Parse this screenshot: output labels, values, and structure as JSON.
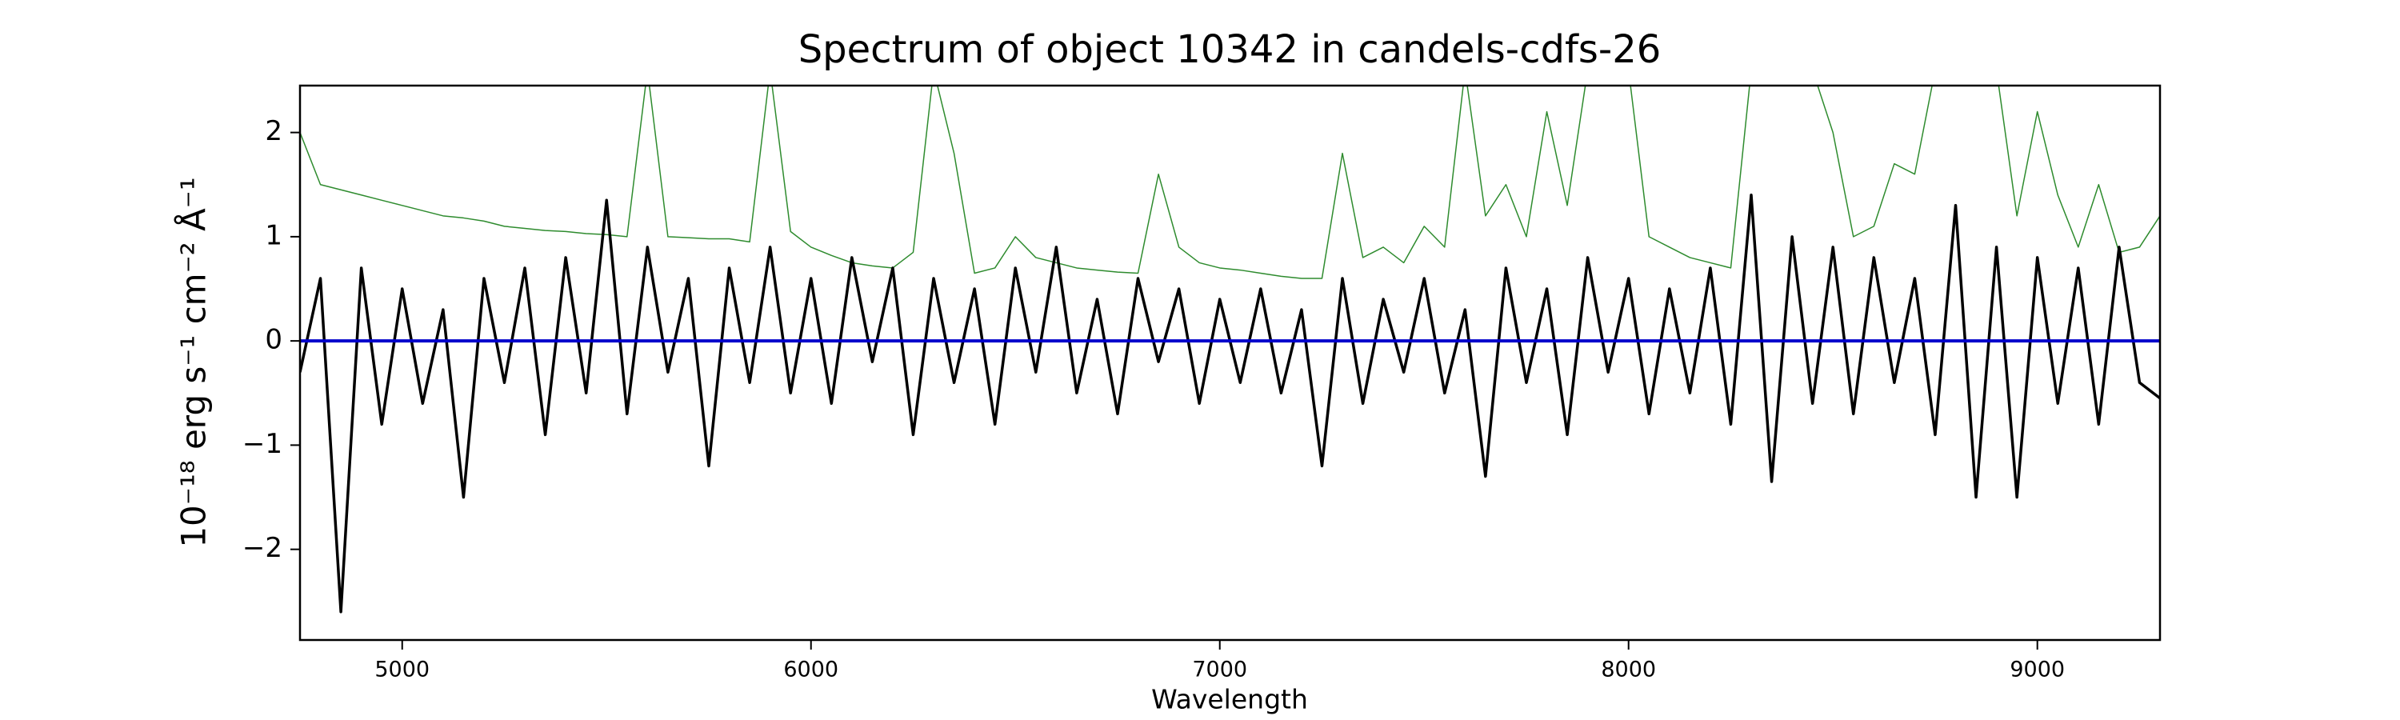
{
  "chart_data": {
    "type": "line",
    "title": "Spectrum of object 10342 in candels-cdfs-26",
    "xlabel": "Wavelength",
    "ylabel": "10⁻¹⁸ erg s⁻¹ cm⁻² Å⁻¹",
    "xlim": [
      4750,
      9300
    ],
    "ylim": [
      -2.87,
      2.45
    ],
    "xticks": [
      5000,
      6000,
      7000,
      8000,
      9000
    ],
    "yticks": [
      {
        "value": -2,
        "label": "−2"
      },
      {
        "value": -1,
        "label": "−1"
      },
      0,
      1,
      2
    ],
    "x": [
      4750,
      4800,
      4850,
      4900,
      4950,
      5000,
      5050,
      5100,
      5150,
      5200,
      5250,
      5300,
      5350,
      5400,
      5450,
      5500,
      5550,
      5600,
      5650,
      5700,
      5750,
      5800,
      5850,
      5900,
      5950,
      6000,
      6050,
      6100,
      6150,
      6200,
      6250,
      6300,
      6350,
      6400,
      6450,
      6500,
      6550,
      6600,
      6650,
      6700,
      6750,
      6800,
      6850,
      6900,
      6950,
      7000,
      7050,
      7100,
      7150,
      7200,
      7250,
      7300,
      7350,
      7400,
      7450,
      7500,
      7550,
      7600,
      7650,
      7700,
      7750,
      7800,
      7850,
      7900,
      7950,
      8000,
      8050,
      8100,
      8150,
      8200,
      8250,
      8300,
      8350,
      8400,
      8450,
      8500,
      8550,
      8600,
      8650,
      8700,
      8750,
      8800,
      8850,
      8900,
      8950,
      9000,
      9050,
      9100,
      9150,
      9200,
      9250,
      9300
    ],
    "series": [
      {
        "color": "#2e8b2e",
        "width": 1.5,
        "values": [
          2.0,
          1.5,
          1.45,
          1.4,
          1.35,
          1.3,
          1.25,
          1.2,
          1.18,
          1.15,
          1.1,
          1.08,
          1.06,
          1.05,
          1.03,
          1.02,
          1.0,
          2.6,
          1.0,
          0.99,
          0.98,
          0.98,
          0.95,
          2.6,
          1.05,
          0.9,
          0.82,
          0.75,
          0.72,
          0.7,
          0.85,
          2.6,
          1.8,
          0.65,
          0.7,
          1.0,
          0.8,
          0.75,
          0.7,
          0.68,
          0.66,
          0.65,
          1.6,
          0.9,
          0.75,
          0.7,
          0.68,
          0.65,
          0.62,
          0.6,
          0.6,
          1.8,
          0.8,
          0.9,
          0.75,
          1.1,
          0.9,
          2.6,
          1.2,
          1.5,
          1.0,
          2.2,
          1.3,
          2.6,
          2.6,
          2.6,
          1.0,
          0.9,
          0.8,
          0.75,
          0.7,
          2.6,
          2.6,
          2.6,
          2.6,
          2.0,
          1.0,
          1.1,
          1.7,
          1.6,
          2.6,
          2.6,
          2.6,
          2.6,
          1.2,
          2.2,
          1.4,
          0.9,
          1.5,
          0.85,
          0.9,
          1.2
        ]
      },
      {
        "color": "#000000",
        "width": 3.5,
        "values": [
          -0.3,
          0.6,
          -2.6,
          0.7,
          -0.8,
          0.5,
          -0.6,
          0.3,
          -1.5,
          0.6,
          -0.4,
          0.7,
          -0.9,
          0.8,
          -0.5,
          1.35,
          -0.7,
          0.9,
          -0.3,
          0.6,
          -1.2,
          0.7,
          -0.4,
          0.9,
          -0.5,
          0.6,
          -0.6,
          0.8,
          -0.2,
          0.7,
          -0.9,
          0.6,
          -0.4,
          0.5,
          -0.8,
          0.7,
          -0.3,
          0.9,
          -0.5,
          0.4,
          -0.7,
          0.6,
          -0.2,
          0.5,
          -0.6,
          0.4,
          -0.4,
          0.5,
          -0.5,
          0.3,
          -1.2,
          0.6,
          -0.6,
          0.4,
          -0.3,
          0.6,
          -0.5,
          0.3,
          -1.3,
          0.7,
          -0.4,
          0.5,
          -0.9,
          0.8,
          -0.3,
          0.6,
          -0.7,
          0.5,
          -0.5,
          0.7,
          -0.8,
          1.4,
          -1.35,
          1.0,
          -0.6,
          0.9,
          -0.7,
          0.8,
          -0.4,
          0.6,
          -0.9,
          1.3,
          -1.5,
          0.9,
          -1.5,
          0.8,
          -0.6,
          0.7,
          -0.8,
          0.9,
          -0.4,
          -0.55
        ]
      },
      {
        "color": "#0000cc",
        "width": 4,
        "values": [
          0,
          0,
          0,
          0,
          0,
          0,
          0,
          0,
          0,
          0,
          0,
          0,
          0,
          0,
          0,
          0,
          0,
          0,
          0,
          0,
          0,
          0,
          0,
          0,
          0,
          0,
          0,
          0,
          0,
          0,
          0,
          0,
          0,
          0,
          0,
          0,
          0,
          0,
          0,
          0,
          0,
          0,
          0,
          0,
          0,
          0,
          0,
          0,
          0,
          0,
          0,
          0,
          0,
          0,
          0,
          0,
          0,
          0,
          0,
          0,
          0,
          0,
          0,
          0,
          0,
          0,
          0,
          0,
          0,
          0,
          0,
          0,
          0,
          0,
          0,
          0,
          0,
          0,
          0,
          0,
          0,
          0,
          0,
          0,
          0,
          0,
          0,
          0,
          0,
          0,
          0,
          0
        ]
      }
    ]
  }
}
